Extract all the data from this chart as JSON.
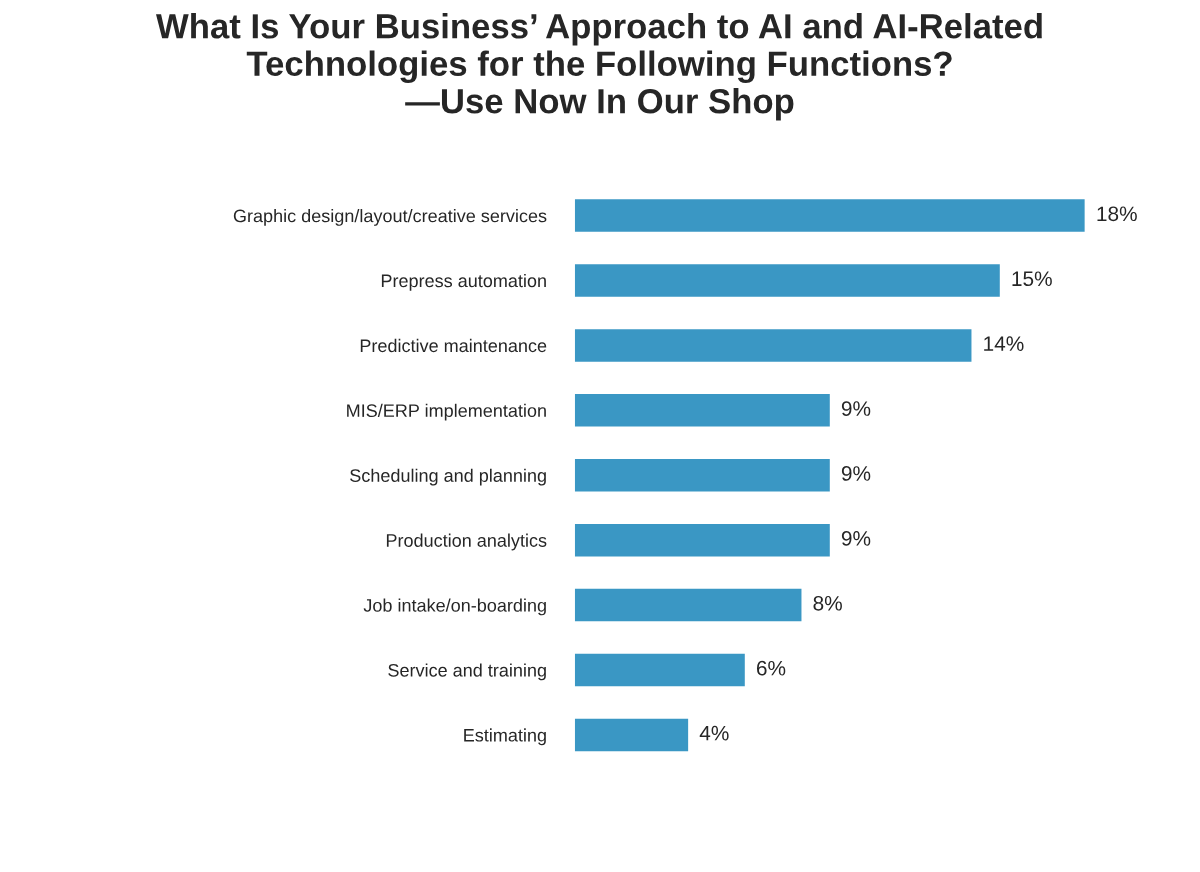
{
  "chart_data": {
    "type": "bar",
    "orientation": "horizontal",
    "title": "What Is Your Business’ Approach to AI and AI-Related\nTechnologies for the Following Functions?\n—Use Now In Our Shop",
    "categories": [
      "Graphic design/layout/creative services",
      "Prepress automation",
      "Predictive maintenance",
      "MIS/ERP implementation",
      "Scheduling and planning",
      "Production analytics",
      "Job intake/on-boarding",
      "Service and training",
      "Estimating"
    ],
    "values": [
      18,
      15,
      14,
      9,
      9,
      9,
      8,
      6,
      4
    ],
    "value_labels": [
      "18%",
      "15%",
      "14%",
      "9%",
      "9%",
      "9%",
      "8%",
      "6%",
      "4%"
    ],
    "color": "#3a97c4",
    "grid": false
  }
}
